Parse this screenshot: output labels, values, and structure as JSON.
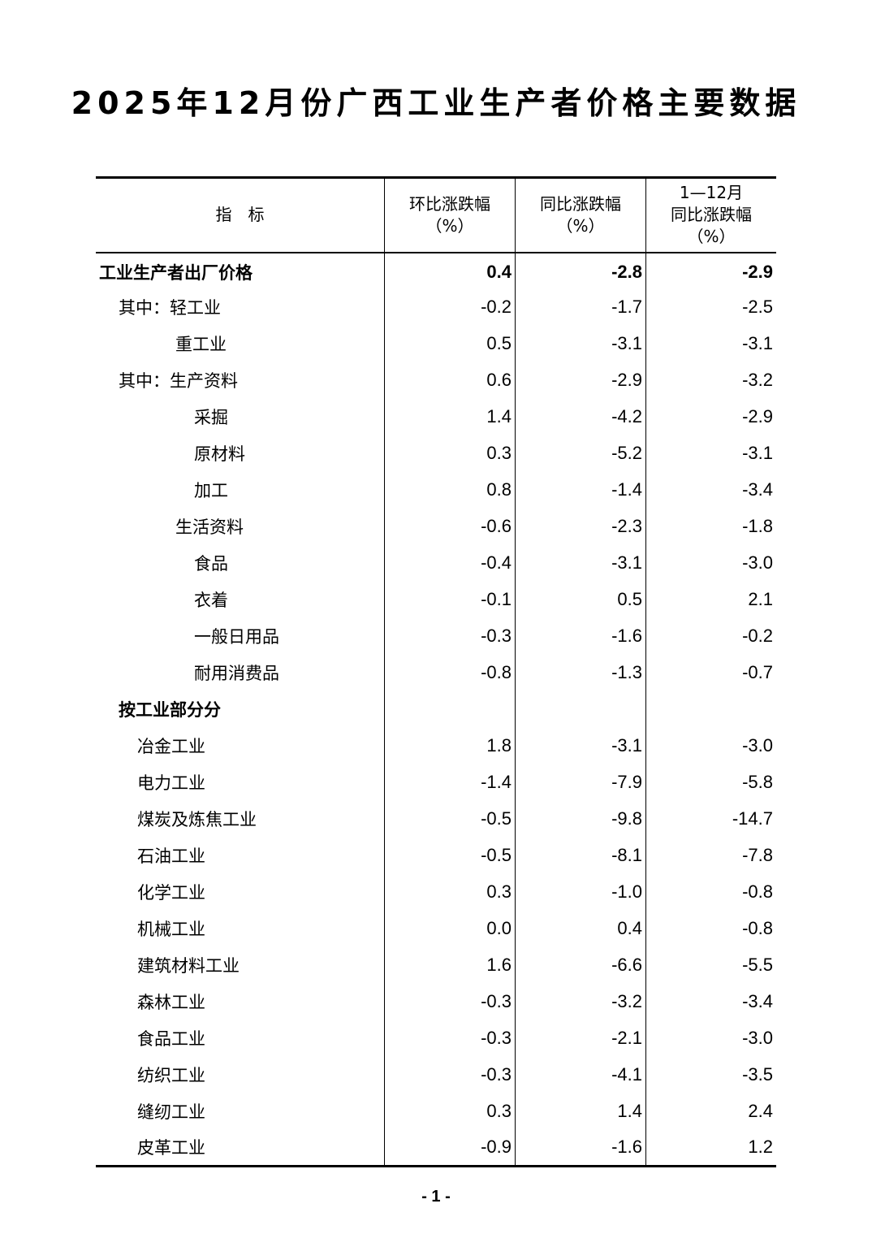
{
  "title": "2025年12月份广西工业生产者价格主要数据",
  "headers": [
    "指　标",
    "环比涨跌幅",
    "（%）",
    "同比涨跌幅",
    "（%）",
    "1—12月",
    "同比涨跌幅",
    "（%）"
  ],
  "rows": [
    {
      "label": "工业生产者出厂价格",
      "mom": "0.4",
      "yoy": "-2.8",
      "ytd": "-2.9",
      "level": 0,
      "bold": true
    },
    {
      "label": "其中：轻工业",
      "mom": "-0.2",
      "yoy": "-1.7",
      "ytd": "-2.5",
      "level": 1
    },
    {
      "label": "重工业",
      "mom": "0.5",
      "yoy": "-3.1",
      "ytd": "-3.1",
      "level": 2
    },
    {
      "label": "其中：生产资料",
      "mom": "0.6",
      "yoy": "-2.9",
      "ytd": "-3.2",
      "level": 1
    },
    {
      "label": "采掘",
      "mom": "1.4",
      "yoy": "-4.2",
      "ytd": "-2.9",
      "level": 3
    },
    {
      "label": "原材料",
      "mom": "0.3",
      "yoy": "-5.2",
      "ytd": "-3.1",
      "level": 3
    },
    {
      "label": "加工",
      "mom": "0.8",
      "yoy": "-1.4",
      "ytd": "-3.4",
      "level": 3
    },
    {
      "label": "生活资料",
      "mom": "-0.6",
      "yoy": "-2.3",
      "ytd": "-1.8",
      "level": 2
    },
    {
      "label": "食品",
      "mom": "-0.4",
      "yoy": "-3.1",
      "ytd": "-3.0",
      "level": 3
    },
    {
      "label": "衣着",
      "mom": "-0.1",
      "yoy": "0.5",
      "ytd": "2.1",
      "level": 3
    },
    {
      "label": "一般日用品",
      "mom": "-0.3",
      "yoy": "-1.6",
      "ytd": "-0.2",
      "level": 3
    },
    {
      "label": "耐用消费品",
      "mom": "-0.8",
      "yoy": "-1.3",
      "ytd": "-0.7",
      "level": 3
    },
    {
      "label": "按工业部分分",
      "mom": "",
      "yoy": "",
      "ytd": "",
      "level": 1,
      "bold": true
    },
    {
      "label": "冶金工业",
      "mom": "1.8",
      "yoy": "-3.1",
      "ytd": "-3.0",
      "level": 4
    },
    {
      "label": "电力工业",
      "mom": "-1.4",
      "yoy": "-7.9",
      "ytd": "-5.8",
      "level": 4
    },
    {
      "label": "煤炭及炼焦工业",
      "mom": "-0.5",
      "yoy": "-9.8",
      "ytd": "-14.7",
      "level": 4
    },
    {
      "label": "石油工业",
      "mom": "-0.5",
      "yoy": "-8.1",
      "ytd": "-7.8",
      "level": 4
    },
    {
      "label": "化学工业",
      "mom": "0.3",
      "yoy": "-1.0",
      "ytd": "-0.8",
      "level": 4
    },
    {
      "label": "机械工业",
      "mom": "0.0",
      "yoy": "0.4",
      "ytd": "-0.8",
      "level": 4
    },
    {
      "label": "建筑材料工业",
      "mom": "1.6",
      "yoy": "-6.6",
      "ytd": "-5.5",
      "level": 4
    },
    {
      "label": "森林工业",
      "mom": "-0.3",
      "yoy": "-3.2",
      "ytd": "-3.4",
      "level": 4
    },
    {
      "label": "食品工业",
      "mom": "-0.3",
      "yoy": "-2.1",
      "ytd": "-3.0",
      "level": 4
    },
    {
      "label": "纺织工业",
      "mom": "-0.3",
      "yoy": "-4.1",
      "ytd": "-3.5",
      "level": 4
    },
    {
      "label": "缝纫工业",
      "mom": "0.3",
      "yoy": "1.4",
      "ytd": "2.4",
      "level": 4
    },
    {
      "label": "皮革工业",
      "mom": "-0.9",
      "yoy": "-1.6",
      "ytd": "1.2",
      "level": 4
    }
  ],
  "page_number": "- 1 -"
}
